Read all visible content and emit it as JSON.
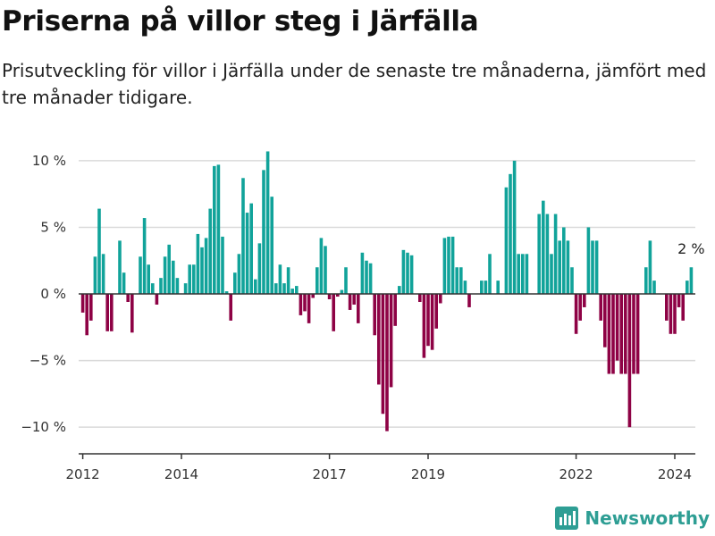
{
  "header": {
    "title": "Priserna på villor steg i Järfälla",
    "subtitle": "Prisutveckling för villor i Järfälla under de senaste tre månaderna, jämfört med tre månader tidigare."
  },
  "brand": {
    "name": "Newsworthy",
    "icon": "bar-chart-logo-icon"
  },
  "colors": {
    "positive": "#11a39a",
    "negative": "#8e0245",
    "grid": "#d9d9d9",
    "zero": "#333333"
  },
  "chart_data": {
    "type": "bar",
    "x_start": "2011-12",
    "x_end": "2024-06",
    "x_ticks": [
      {
        "date": "2012-01",
        "label": "2012"
      },
      {
        "date": "2014-01",
        "label": "2014"
      },
      {
        "date": "2017-01",
        "label": "2017"
      },
      {
        "date": "2019-01",
        "label": "2019"
      },
      {
        "date": "2022-01",
        "label": "2022"
      },
      {
        "date": "2024-01",
        "label": "2024"
      }
    ],
    "y_ticks": [
      {
        "value": 10,
        "label": "10 %"
      },
      {
        "value": 5,
        "label": "5 %"
      },
      {
        "value": 0,
        "label": "0 %"
      },
      {
        "value": -5,
        "label": "−5 %"
      },
      {
        "value": -10,
        "label": "−10 %"
      }
    ],
    "ylim": [
      -12,
      11
    ],
    "grid": true,
    "series": [
      {
        "points": [
          {
            "date": "2012-01",
            "value": -1.4
          },
          {
            "date": "2012-02",
            "value": -3.1
          },
          {
            "date": "2012-03",
            "value": -2
          },
          {
            "date": "2012-04",
            "value": 2.8
          },
          {
            "date": "2012-05",
            "value": 6.4
          },
          {
            "date": "2012-06",
            "value": 3
          },
          {
            "date": "2012-07",
            "value": -2.8
          },
          {
            "date": "2012-08",
            "value": -2.8
          },
          {
            "date": "2012-09",
            "value": 0
          },
          {
            "date": "2012-10",
            "value": 4
          },
          {
            "date": "2012-11",
            "value": 1.6
          },
          {
            "date": "2012-12",
            "value": -0.6
          },
          {
            "date": "2013-01",
            "value": -2.9
          },
          {
            "date": "2013-02",
            "value": 0
          },
          {
            "date": "2013-03",
            "value": 2.8
          },
          {
            "date": "2013-04",
            "value": 5.7
          },
          {
            "date": "2013-05",
            "value": 2.2
          },
          {
            "date": "2013-06",
            "value": 0.8
          },
          {
            "date": "2013-07",
            "value": -0.8
          },
          {
            "date": "2013-08",
            "value": 1.2
          },
          {
            "date": "2013-09",
            "value": 2.8
          },
          {
            "date": "2013-10",
            "value": 3.7
          },
          {
            "date": "2013-11",
            "value": 2.5
          },
          {
            "date": "2013-12",
            "value": 1.2
          },
          {
            "date": "2014-01",
            "value": 0
          },
          {
            "date": "2014-02",
            "value": 0.8
          },
          {
            "date": "2014-03",
            "value": 2.2
          },
          {
            "date": "2014-04",
            "value": 2.2
          },
          {
            "date": "2014-05",
            "value": 4.5
          },
          {
            "date": "2014-06",
            "value": 3.5
          },
          {
            "date": "2014-07",
            "value": 4.2
          },
          {
            "date": "2014-08",
            "value": 6.4
          },
          {
            "date": "2014-09",
            "value": 9.6
          },
          {
            "date": "2014-10",
            "value": 9.7
          },
          {
            "date": "2014-11",
            "value": 4.3
          },
          {
            "date": "2014-12",
            "value": 0.2
          },
          {
            "date": "2015-01",
            "value": -2
          },
          {
            "date": "2015-02",
            "value": 1.6
          },
          {
            "date": "2015-03",
            "value": 3
          },
          {
            "date": "2015-04",
            "value": 8.7
          },
          {
            "date": "2015-05",
            "value": 6.1
          },
          {
            "date": "2015-06",
            "value": 6.8
          },
          {
            "date": "2015-07",
            "value": 1.1
          },
          {
            "date": "2015-08",
            "value": 3.8
          },
          {
            "date": "2015-09",
            "value": 9.3
          },
          {
            "date": "2015-10",
            "value": 10.7
          },
          {
            "date": "2015-11",
            "value": 7.3
          },
          {
            "date": "2015-12",
            "value": 0.8
          },
          {
            "date": "2016-01",
            "value": 2.2
          },
          {
            "date": "2016-02",
            "value": 0.8
          },
          {
            "date": "2016-03",
            "value": 2
          },
          {
            "date": "2016-04",
            "value": 0.4
          },
          {
            "date": "2016-05",
            "value": 0.6
          },
          {
            "date": "2016-06",
            "value": -1.6
          },
          {
            "date": "2016-07",
            "value": -1.3
          },
          {
            "date": "2016-08",
            "value": -2.2
          },
          {
            "date": "2016-09",
            "value": -0.3
          },
          {
            "date": "2016-10",
            "value": 2
          },
          {
            "date": "2016-11",
            "value": 4.2
          },
          {
            "date": "2016-12",
            "value": 3.6
          },
          {
            "date": "2017-01",
            "value": -0.4
          },
          {
            "date": "2017-02",
            "value": -2.8
          },
          {
            "date": "2017-03",
            "value": -0.2
          },
          {
            "date": "2017-04",
            "value": 0.3
          },
          {
            "date": "2017-05",
            "value": 2
          },
          {
            "date": "2017-06",
            "value": -1.2
          },
          {
            "date": "2017-07",
            "value": -0.8
          },
          {
            "date": "2017-08",
            "value": -2.2
          },
          {
            "date": "2017-09",
            "value": 3.1
          },
          {
            "date": "2017-10",
            "value": 2.5
          },
          {
            "date": "2017-11",
            "value": 2.3
          },
          {
            "date": "2017-12",
            "value": -3.1
          },
          {
            "date": "2018-01",
            "value": -6.8
          },
          {
            "date": "2018-02",
            "value": -9
          },
          {
            "date": "2018-03",
            "value": -10.3
          },
          {
            "date": "2018-04",
            "value": -7
          },
          {
            "date": "2018-05",
            "value": -2.4
          },
          {
            "date": "2018-06",
            "value": 0.6
          },
          {
            "date": "2018-07",
            "value": 3.3
          },
          {
            "date": "2018-08",
            "value": 3.1
          },
          {
            "date": "2018-09",
            "value": 2.9
          },
          {
            "date": "2018-10",
            "value": 0
          },
          {
            "date": "2018-11",
            "value": -0.6
          },
          {
            "date": "2018-12",
            "value": -4.8
          },
          {
            "date": "2019-01",
            "value": -3.9
          },
          {
            "date": "2019-02",
            "value": -4.2
          },
          {
            "date": "2019-03",
            "value": -2.6
          },
          {
            "date": "2019-04",
            "value": -0.7
          },
          {
            "date": "2019-05",
            "value": 4.2
          },
          {
            "date": "2019-06",
            "value": 4.3
          },
          {
            "date": "2019-07",
            "value": 4.3
          },
          {
            "date": "2019-08",
            "value": 2
          },
          {
            "date": "2019-09",
            "value": 2
          },
          {
            "date": "2019-10",
            "value": 1
          },
          {
            "date": "2019-11",
            "value": -1
          },
          {
            "date": "2019-12",
            "value": 0
          },
          {
            "date": "2020-01",
            "value": 0
          },
          {
            "date": "2020-02",
            "value": 1
          },
          {
            "date": "2020-03",
            "value": 1
          },
          {
            "date": "2020-04",
            "value": 3
          },
          {
            "date": "2020-05",
            "value": 0
          },
          {
            "date": "2020-06",
            "value": 1
          },
          {
            "date": "2020-07",
            "value": 0
          },
          {
            "date": "2020-08",
            "value": 8
          },
          {
            "date": "2020-09",
            "value": 9
          },
          {
            "date": "2020-10",
            "value": 10
          },
          {
            "date": "2020-11",
            "value": 3
          },
          {
            "date": "2020-12",
            "value": 3
          },
          {
            "date": "2021-01",
            "value": 3
          },
          {
            "date": "2021-02",
            "value": 0
          },
          {
            "date": "2021-03",
            "value": 0
          },
          {
            "date": "2021-04",
            "value": 6
          },
          {
            "date": "2021-05",
            "value": 7
          },
          {
            "date": "2021-06",
            "value": 6
          },
          {
            "date": "2021-07",
            "value": 3
          },
          {
            "date": "2021-08",
            "value": 6
          },
          {
            "date": "2021-09",
            "value": 4
          },
          {
            "date": "2021-10",
            "value": 5
          },
          {
            "date": "2021-11",
            "value": 4
          },
          {
            "date": "2021-12",
            "value": 2
          },
          {
            "date": "2022-01",
            "value": -3
          },
          {
            "date": "2022-02",
            "value": -2
          },
          {
            "date": "2022-03",
            "value": -1
          },
          {
            "date": "2022-04",
            "value": 5
          },
          {
            "date": "2022-05",
            "value": 4
          },
          {
            "date": "2022-06",
            "value": 4
          },
          {
            "date": "2022-07",
            "value": -2
          },
          {
            "date": "2022-08",
            "value": -4
          },
          {
            "date": "2022-09",
            "value": -6
          },
          {
            "date": "2022-10",
            "value": -6
          },
          {
            "date": "2022-11",
            "value": -5
          },
          {
            "date": "2022-12",
            "value": -6
          },
          {
            "date": "2023-01",
            "value": -6
          },
          {
            "date": "2023-02",
            "value": -10
          },
          {
            "date": "2023-03",
            "value": -6
          },
          {
            "date": "2023-04",
            "value": -6
          },
          {
            "date": "2023-05",
            "value": 0
          },
          {
            "date": "2023-06",
            "value": 2
          },
          {
            "date": "2023-07",
            "value": 4
          },
          {
            "date": "2023-08",
            "value": 1
          },
          {
            "date": "2023-09",
            "value": 0
          },
          {
            "date": "2023-10",
            "value": 0
          },
          {
            "date": "2023-11",
            "value": -2
          },
          {
            "date": "2023-12",
            "value": -3
          },
          {
            "date": "2024-01",
            "value": -3
          },
          {
            "date": "2024-02",
            "value": -1
          },
          {
            "date": "2024-03",
            "value": -2
          },
          {
            "date": "2024-04",
            "value": 1
          },
          {
            "date": "2024-05",
            "value": 2
          }
        ]
      }
    ],
    "annotation": {
      "date": "2024-05",
      "label": "2 %"
    }
  }
}
